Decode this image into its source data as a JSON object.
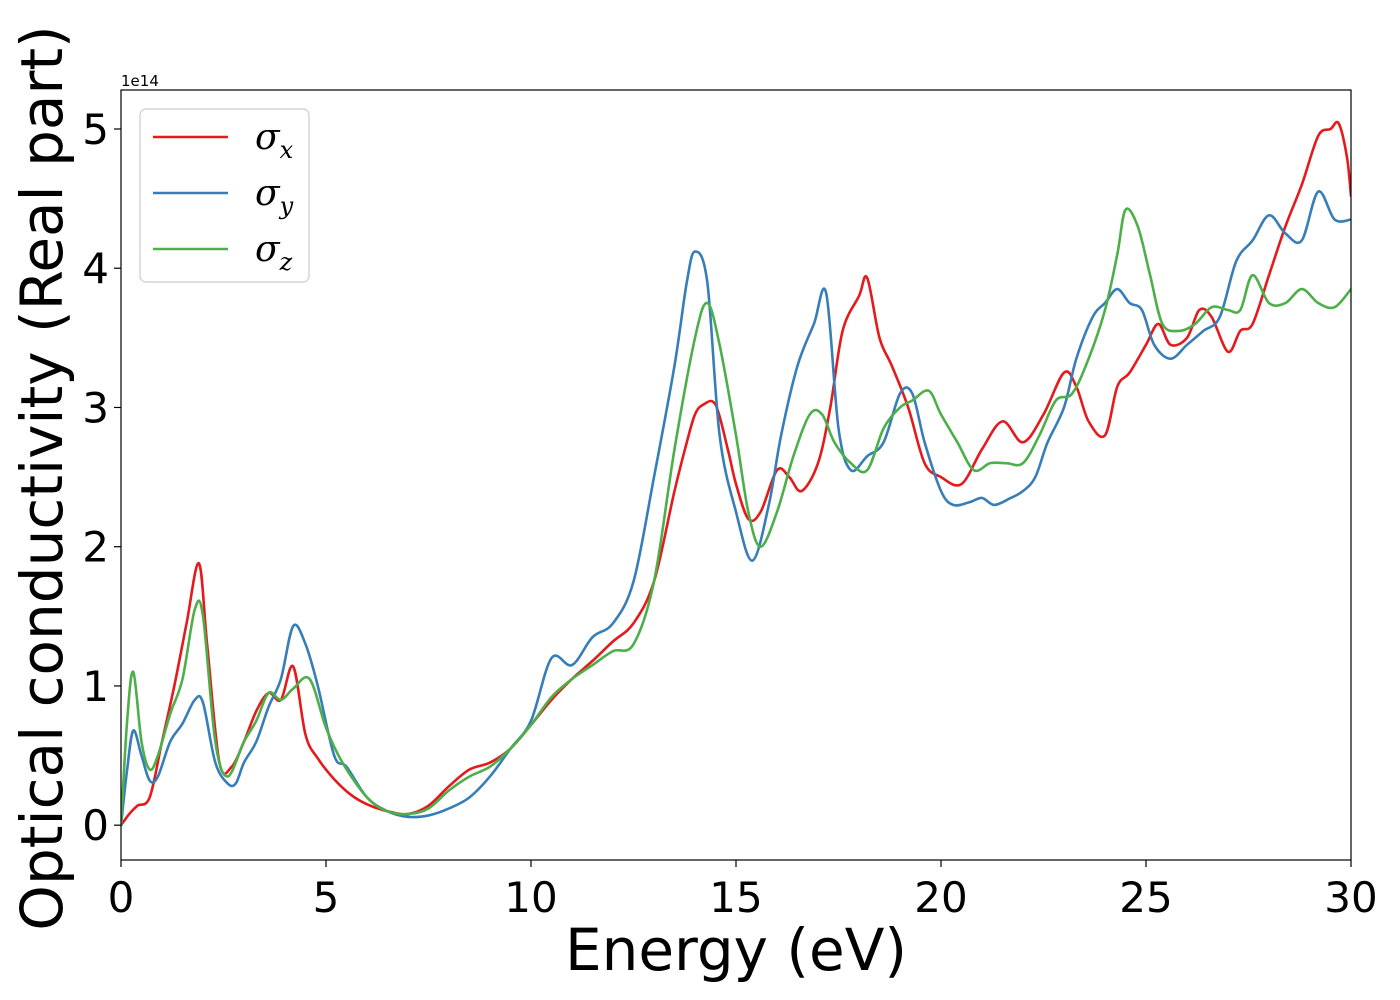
{
  "chart_data": {
    "type": "line",
    "title": "",
    "xlabel": "Energy (eV)",
    "ylabel": "Optical conductivity (Real part)",
    "y_offset_label": "1e14",
    "xlim": [
      0,
      30
    ],
    "ylim": [
      -0.25,
      5.28
    ],
    "x_ticks": [
      0,
      5,
      10,
      15,
      20,
      25,
      30
    ],
    "x_tick_labels": [
      "0",
      "5",
      "10",
      "15",
      "20",
      "25",
      "30"
    ],
    "y_ticks": [
      0,
      1,
      2,
      3,
      4,
      5
    ],
    "y_tick_labels": [
      "0",
      "1",
      "2",
      "3",
      "4",
      "5"
    ],
    "grid": false,
    "legend_position": "top-left",
    "series": [
      {
        "name": "σx",
        "symbol": "σ",
        "subscript": "x",
        "color": "#e41a1c",
        "x": [
          0,
          0.2,
          0.4,
          0.7,
          1.0,
          1.3,
          1.6,
          1.9,
          2.1,
          2.4,
          2.7,
          3.0,
          3.3,
          3.6,
          3.9,
          4.2,
          4.5,
          4.8,
          5.2,
          5.6,
          6.0,
          6.5,
          7.0,
          7.5,
          8.0,
          8.5,
          9.0,
          9.5,
          10.0,
          10.5,
          11.0,
          11.5,
          12.0,
          12.5,
          13.0,
          13.5,
          13.8,
          14.0,
          14.2,
          14.5,
          14.8,
          15.0,
          15.3,
          15.6,
          16.0,
          16.3,
          16.6,
          17.0,
          17.3,
          17.6,
          18.0,
          18.2,
          18.5,
          18.8,
          19.2,
          19.6,
          20.0,
          20.5,
          21.0,
          21.5,
          22.0,
          22.5,
          23.0,
          23.3,
          23.6,
          24.0,
          24.3,
          24.6,
          25.0,
          25.3,
          25.6,
          26.0,
          26.3,
          26.6,
          27.0,
          27.3,
          27.6,
          28.0,
          28.4,
          28.8,
          29.2,
          29.5,
          29.7,
          29.9,
          30.0
        ],
        "y": [
          0.0,
          0.08,
          0.14,
          0.2,
          0.6,
          1.0,
          1.45,
          1.88,
          1.3,
          0.45,
          0.42,
          0.6,
          0.82,
          0.95,
          0.9,
          1.14,
          0.65,
          0.48,
          0.33,
          0.22,
          0.15,
          0.1,
          0.08,
          0.14,
          0.28,
          0.4,
          0.45,
          0.55,
          0.72,
          0.9,
          1.05,
          1.18,
          1.32,
          1.45,
          1.75,
          2.4,
          2.75,
          2.95,
          3.02,
          3.02,
          2.7,
          2.45,
          2.2,
          2.25,
          2.55,
          2.5,
          2.4,
          2.6,
          3.0,
          3.55,
          3.8,
          3.93,
          3.5,
          3.3,
          3.0,
          2.6,
          2.5,
          2.45,
          2.7,
          2.9,
          2.75,
          2.95,
          3.25,
          3.15,
          2.9,
          2.8,
          3.15,
          3.25,
          3.45,
          3.6,
          3.45,
          3.5,
          3.7,
          3.65,
          3.4,
          3.55,
          3.6,
          3.95,
          4.3,
          4.6,
          4.95,
          5.0,
          5.04,
          4.8,
          4.52
        ]
      },
      {
        "name": "σy",
        "symbol": "σ",
        "subscript": "y",
        "color": "#377eb8",
        "x": [
          0,
          0.15,
          0.3,
          0.5,
          0.7,
          0.9,
          1.2,
          1.5,
          1.8,
          2.0,
          2.3,
          2.6,
          2.8,
          3.0,
          3.3,
          3.6,
          3.9,
          4.2,
          4.5,
          4.8,
          5.2,
          5.5,
          6.0,
          6.5,
          7.0,
          7.5,
          8.0,
          8.5,
          9.0,
          9.5,
          10.0,
          10.5,
          11.0,
          11.5,
          12.0,
          12.5,
          13.0,
          13.5,
          13.8,
          14.0,
          14.3,
          14.6,
          15.0,
          15.4,
          15.8,
          16.1,
          16.5,
          16.9,
          17.2,
          17.5,
          17.8,
          18.2,
          18.6,
          19.0,
          19.3,
          19.6,
          20.0,
          20.3,
          20.7,
          21.0,
          21.3,
          21.7,
          22.0,
          22.3,
          22.6,
          23.0,
          23.3,
          23.7,
          24.0,
          24.3,
          24.6,
          24.9,
          25.2,
          25.6,
          26.0,
          26.4,
          26.8,
          27.2,
          27.6,
          28.0,
          28.4,
          28.8,
          29.2,
          29.6,
          30.0
        ],
        "y": [
          0.0,
          0.4,
          0.68,
          0.5,
          0.32,
          0.35,
          0.6,
          0.73,
          0.9,
          0.88,
          0.45,
          0.3,
          0.3,
          0.45,
          0.6,
          0.85,
          1.05,
          1.43,
          1.3,
          1.0,
          0.5,
          0.42,
          0.2,
          0.1,
          0.06,
          0.07,
          0.12,
          0.2,
          0.35,
          0.55,
          0.75,
          1.2,
          1.15,
          1.35,
          1.45,
          1.75,
          2.5,
          3.3,
          3.9,
          4.12,
          3.9,
          2.8,
          2.25,
          1.9,
          2.3,
          2.8,
          3.3,
          3.6,
          3.82,
          2.85,
          2.55,
          2.65,
          2.75,
          3.1,
          3.1,
          2.75,
          2.4,
          2.3,
          2.32,
          2.35,
          2.3,
          2.35,
          2.4,
          2.5,
          2.75,
          3.0,
          3.35,
          3.65,
          3.75,
          3.85,
          3.75,
          3.7,
          3.45,
          3.35,
          3.45,
          3.55,
          3.65,
          4.05,
          4.2,
          4.38,
          4.25,
          4.2,
          4.55,
          4.35,
          4.35
        ]
      },
      {
        "name": "σz",
        "symbol": "σ",
        "subscript": "z",
        "color": "#4daf4a",
        "x": [
          0,
          0.15,
          0.3,
          0.5,
          0.7,
          0.9,
          1.2,
          1.5,
          1.8,
          2.0,
          2.3,
          2.6,
          3.0,
          3.3,
          3.6,
          3.9,
          4.2,
          4.6,
          5.0,
          5.4,
          6.0,
          6.5,
          7.0,
          7.5,
          8.0,
          8.5,
          9.0,
          9.5,
          10.0,
          10.5,
          11.0,
          11.5,
          12.0,
          12.5,
          13.0,
          13.5,
          14.0,
          14.3,
          14.6,
          15.0,
          15.3,
          15.6,
          16.0,
          16.4,
          16.8,
          17.1,
          17.4,
          17.8,
          18.2,
          18.6,
          19.0,
          19.3,
          19.7,
          20.0,
          20.4,
          20.8,
          21.2,
          21.6,
          22.0,
          22.4,
          22.8,
          23.2,
          23.6,
          24.0,
          24.3,
          24.5,
          24.8,
          25.1,
          25.4,
          25.8,
          26.2,
          26.6,
          27.0,
          27.3,
          27.6,
          28.0,
          28.4,
          28.8,
          29.2,
          29.6,
          30.0
        ],
        "y": [
          0.0,
          0.75,
          1.1,
          0.6,
          0.4,
          0.5,
          0.8,
          1.05,
          1.55,
          1.5,
          0.6,
          0.35,
          0.6,
          0.75,
          0.95,
          0.9,
          0.98,
          1.05,
          0.7,
          0.45,
          0.2,
          0.1,
          0.08,
          0.12,
          0.25,
          0.35,
          0.42,
          0.55,
          0.72,
          0.92,
          1.05,
          1.15,
          1.25,
          1.3,
          1.75,
          2.7,
          3.5,
          3.75,
          3.45,
          2.8,
          2.25,
          2.0,
          2.25,
          2.65,
          2.95,
          2.95,
          2.75,
          2.6,
          2.55,
          2.85,
          3.0,
          3.05,
          3.12,
          2.95,
          2.75,
          2.55,
          2.6,
          2.6,
          2.6,
          2.8,
          3.05,
          3.1,
          3.35,
          3.7,
          4.1,
          4.42,
          4.3,
          3.95,
          3.6,
          3.55,
          3.6,
          3.72,
          3.7,
          3.7,
          3.95,
          3.75,
          3.75,
          3.85,
          3.75,
          3.72,
          3.85
        ]
      }
    ]
  }
}
